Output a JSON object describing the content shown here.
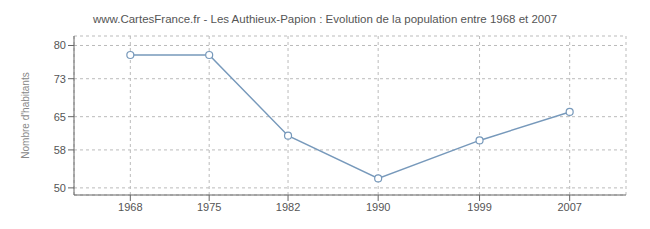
{
  "chart_data": {
    "type": "line",
    "title": "www.CartesFrance.fr - Les Authieux-Papion : Evolution de la population entre 1968 et 2007",
    "ylabel": "Nombre d'habitants",
    "x": [
      1968,
      1975,
      1982,
      1990,
      1999,
      2007
    ],
    "values": [
      78,
      78,
      61,
      52,
      60,
      66
    ],
    "xlim": [
      1963,
      2012
    ],
    "xticks": [
      1968,
      1975,
      1982,
      1990,
      1999,
      2007
    ],
    "ylim": [
      48.5,
      82
    ],
    "yticks": [
      50,
      58,
      65,
      73,
      80
    ],
    "grid": true,
    "color": "#7799bb",
    "marker": "circle",
    "line_style": "solid"
  }
}
